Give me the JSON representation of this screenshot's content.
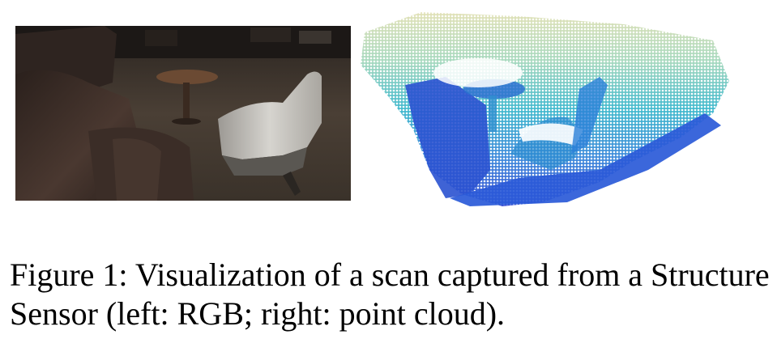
{
  "figure": {
    "caption": "Figure 1: Visualization of a scan captured from a Structure Sensor (left: RGB; right: point cloud).",
    "colors": {
      "rgb_floor": "#4a3f35",
      "rgb_dark": "#1f1a17",
      "sofa": "#3b2e28",
      "chair_white": "#c9c7c2",
      "table_top": "#6b4a33",
      "cloud_blue": "#2a4fd6",
      "cloud_cyan": "#2fb3c9",
      "cloud_yellow": "#d9d8a8"
    },
    "icons": {
      "rgb": "photo-rgb-image",
      "cloud": "point-cloud-render"
    }
  }
}
